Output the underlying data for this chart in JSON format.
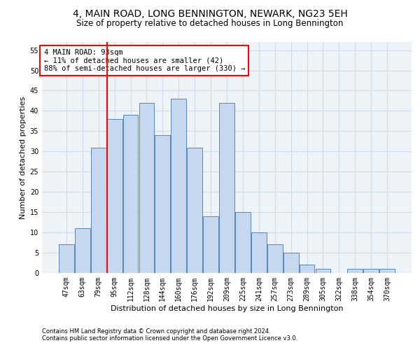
{
  "title": "4, MAIN ROAD, LONG BENNINGTON, NEWARK, NG23 5EH",
  "subtitle": "Size of property relative to detached houses in Long Bennington",
  "xlabel": "Distribution of detached houses by size in Long Bennington",
  "ylabel": "Number of detached properties",
  "footnote1": "Contains HM Land Registry data © Crown copyright and database right 2024.",
  "footnote2": "Contains public sector information licensed under the Open Government Licence v3.0.",
  "annotation_title": "4 MAIN ROAD: 93sqm",
  "annotation_line1": "← 11% of detached houses are smaller (42)",
  "annotation_line2": "88% of semi-detached houses are larger (330) →",
  "bar_labels": [
    "47sqm",
    "63sqm",
    "79sqm",
    "95sqm",
    "112sqm",
    "128sqm",
    "144sqm",
    "160sqm",
    "176sqm",
    "192sqm",
    "209sqm",
    "225sqm",
    "241sqm",
    "257sqm",
    "273sqm",
    "289sqm",
    "305sqm",
    "322sqm",
    "338sqm",
    "354sqm",
    "370sqm"
  ],
  "bar_values": [
    7,
    11,
    31,
    38,
    39,
    42,
    34,
    43,
    31,
    14,
    42,
    15,
    10,
    7,
    5,
    2,
    1,
    0,
    1,
    1,
    1
  ],
  "bar_color": "#c5d8f0",
  "bar_edge_color": "#5588bb",
  "property_line_bin": 3,
  "ylim": [
    0,
    57
  ],
  "yticks": [
    0,
    5,
    10,
    15,
    20,
    25,
    30,
    35,
    40,
    45,
    50,
    55
  ],
  "grid_color": "#d0dde8",
  "background_color": "#eef3f8",
  "title_fontsize": 10,
  "subtitle_fontsize": 8.5,
  "axis_label_fontsize": 8,
  "tick_fontsize": 7,
  "annotation_fontsize": 7.5,
  "footnote_fontsize": 6
}
